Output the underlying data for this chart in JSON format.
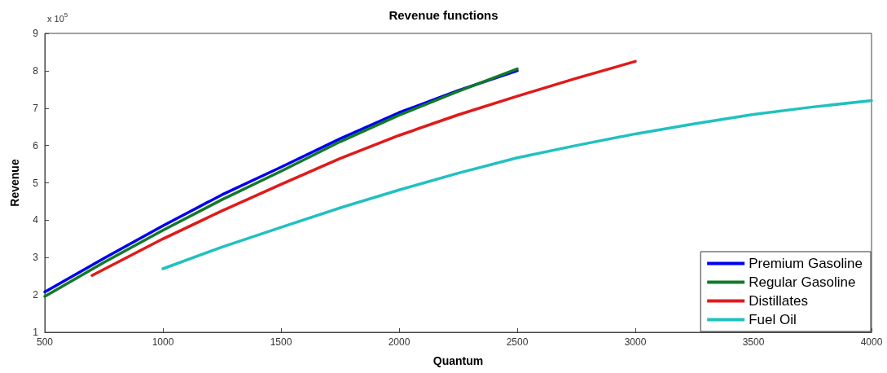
{
  "chart_data": {
    "type": "line",
    "title": "Revenue functions",
    "xlabel": "Quantum",
    "ylabel": "Revenue",
    "annotations": [
      "x 10$^{5}$"
    ],
    "xlim": [
      500,
      4000
    ],
    "xticks": [
      500,
      1000,
      1500,
      2000,
      2500,
      3000,
      3500,
      4000
    ],
    "ylim": [
      1,
      9
    ],
    "yticks": [
      1,
      2,
      3,
      4,
      5,
      6,
      7,
      8,
      9
    ],
    "grid": false,
    "legend": "bottom right",
    "marker": "none",
    "line_style": "solid",
    "series": [
      {
        "name": "Premium Gasoline",
        "color": "#0000ee",
        "x": [
          500,
          750,
          1000,
          1250,
          1500,
          1750,
          2000,
          2250,
          2500
        ],
        "values": [
          2.08,
          2.98,
          3.85,
          4.68,
          5.42,
          6.18,
          6.88,
          7.47,
          8.0
        ]
      },
      {
        "name": "Regular Gasoline",
        "color": "#117a2a",
        "x": [
          500,
          750,
          1000,
          1250,
          1500,
          1750,
          2000,
          2250,
          2500
        ],
        "values": [
          1.96,
          2.87,
          3.73,
          4.55,
          5.31,
          6.1,
          6.81,
          7.45,
          8.05
        ]
      },
      {
        "name": "Distillates",
        "color": "#e01a1a",
        "x": [
          700,
          1000,
          1250,
          1500,
          1750,
          2000,
          2250,
          2500,
          2750,
          3000
        ],
        "values": [
          2.52,
          3.5,
          4.25,
          4.96,
          5.65,
          6.27,
          6.82,
          7.32,
          7.8,
          8.25
        ]
      },
      {
        "name": "Fuel Oil",
        "color": "#22c0c0",
        "x": [
          1000,
          1250,
          1500,
          1750,
          2000,
          2250,
          2500,
          2750,
          3000,
          3250,
          3500,
          3750,
          4000
        ],
        "values": [
          2.7,
          3.28,
          3.81,
          4.33,
          4.81,
          5.26,
          5.67,
          6.0,
          6.31,
          6.58,
          6.83,
          7.03,
          7.2
        ]
      }
    ]
  }
}
